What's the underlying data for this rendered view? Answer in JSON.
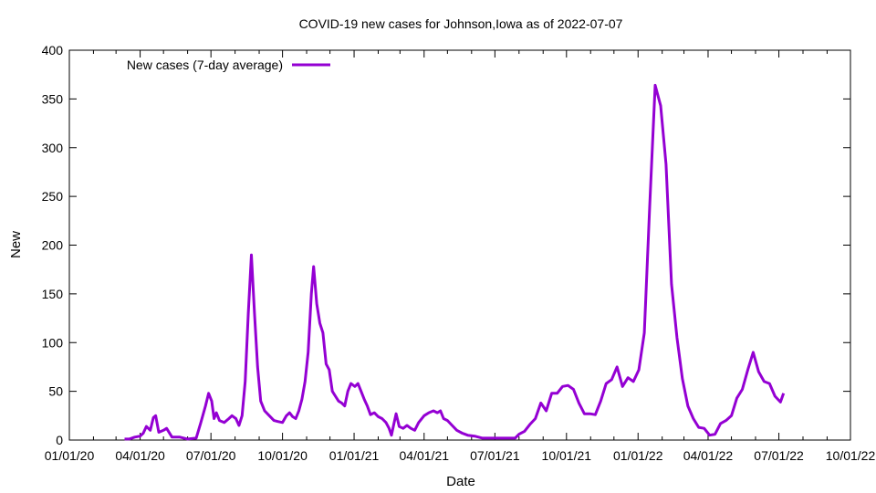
{
  "chart_data": {
    "type": "line",
    "title": "COVID-19 new cases for Johnson,Iowa as of 2022-07-07",
    "xlabel": "Date",
    "ylabel": "New",
    "xlim": [
      "2020-01-01",
      "2022-10-01"
    ],
    "ylim": [
      0,
      400
    ],
    "x_ticks": [
      "01/01/20",
      "04/01/20",
      "07/01/20",
      "10/01/20",
      "01/01/21",
      "04/01/21",
      "07/01/21",
      "10/01/21",
      "01/01/22",
      "04/01/22",
      "07/01/22",
      "10/01/22"
    ],
    "y_ticks": [
      0,
      50,
      100,
      150,
      200,
      250,
      300,
      350,
      400
    ],
    "grid": false,
    "legend_position": "top-left",
    "series": [
      {
        "name": "New cases (7-day average)",
        "color": "#9400d3",
        "points": [
          [
            "2020-03-12",
            1
          ],
          [
            "2020-03-18",
            1
          ],
          [
            "2020-03-25",
            3
          ],
          [
            "2020-04-01",
            4
          ],
          [
            "2020-04-05",
            7
          ],
          [
            "2020-04-09",
            14
          ],
          [
            "2020-04-14",
            10
          ],
          [
            "2020-04-18",
            23
          ],
          [
            "2020-04-21",
            25
          ],
          [
            "2020-04-25",
            8
          ],
          [
            "2020-05-01",
            10
          ],
          [
            "2020-05-05",
            12
          ],
          [
            "2020-05-12",
            3
          ],
          [
            "2020-05-22",
            3
          ],
          [
            "2020-06-01",
            1
          ],
          [
            "2020-06-12",
            2
          ],
          [
            "2020-06-18",
            18
          ],
          [
            "2020-06-24",
            35
          ],
          [
            "2020-06-28",
            48
          ],
          [
            "2020-07-02",
            40
          ],
          [
            "2020-07-05",
            22
          ],
          [
            "2020-07-08",
            28
          ],
          [
            "2020-07-12",
            20
          ],
          [
            "2020-07-18",
            18
          ],
          [
            "2020-07-24",
            22
          ],
          [
            "2020-07-28",
            25
          ],
          [
            "2020-08-02",
            22
          ],
          [
            "2020-08-06",
            15
          ],
          [
            "2020-08-10",
            25
          ],
          [
            "2020-08-14",
            60
          ],
          [
            "2020-08-18",
            130
          ],
          [
            "2020-08-22",
            190
          ],
          [
            "2020-08-26",
            130
          ],
          [
            "2020-08-30",
            75
          ],
          [
            "2020-09-03",
            40
          ],
          [
            "2020-09-08",
            30
          ],
          [
            "2020-09-14",
            25
          ],
          [
            "2020-09-20",
            20
          ],
          [
            "2020-09-25",
            19
          ],
          [
            "2020-10-01",
            18
          ],
          [
            "2020-10-06",
            25
          ],
          [
            "2020-10-10",
            28
          ],
          [
            "2020-10-14",
            24
          ],
          [
            "2020-10-18",
            22
          ],
          [
            "2020-10-22",
            30
          ],
          [
            "2020-10-26",
            42
          ],
          [
            "2020-10-30",
            60
          ],
          [
            "2020-11-03",
            90
          ],
          [
            "2020-11-07",
            150
          ],
          [
            "2020-11-10",
            178
          ],
          [
            "2020-11-14",
            140
          ],
          [
            "2020-11-18",
            120
          ],
          [
            "2020-11-22",
            110
          ],
          [
            "2020-11-26",
            78
          ],
          [
            "2020-11-30",
            72
          ],
          [
            "2020-12-04",
            50
          ],
          [
            "2020-12-08",
            45
          ],
          [
            "2020-12-12",
            40
          ],
          [
            "2020-12-16",
            38
          ],
          [
            "2020-12-20",
            35
          ],
          [
            "2020-12-24",
            50
          ],
          [
            "2020-12-28",
            58
          ],
          [
            "2021-01-02",
            55
          ],
          [
            "2021-01-06",
            58
          ],
          [
            "2021-01-10",
            50
          ],
          [
            "2021-01-14",
            42
          ],
          [
            "2021-01-18",
            35
          ],
          [
            "2021-01-22",
            26
          ],
          [
            "2021-01-27",
            28
          ],
          [
            "2021-02-01",
            24
          ],
          [
            "2021-02-06",
            22
          ],
          [
            "2021-02-11",
            18
          ],
          [
            "2021-02-15",
            12
          ],
          [
            "2021-02-18",
            5
          ],
          [
            "2021-02-21",
            16
          ],
          [
            "2021-02-24",
            27
          ],
          [
            "2021-02-28",
            14
          ],
          [
            "2021-03-05",
            12
          ],
          [
            "2021-03-10",
            15
          ],
          [
            "2021-03-15",
            12
          ],
          [
            "2021-03-20",
            10
          ],
          [
            "2021-03-25",
            18
          ],
          [
            "2021-04-01",
            25
          ],
          [
            "2021-04-07",
            28
          ],
          [
            "2021-04-13",
            30
          ],
          [
            "2021-04-18",
            28
          ],
          [
            "2021-04-22",
            30
          ],
          [
            "2021-04-26",
            22
          ],
          [
            "2021-05-01",
            20
          ],
          [
            "2021-05-07",
            15
          ],
          [
            "2021-05-13",
            10
          ],
          [
            "2021-05-20",
            7
          ],
          [
            "2021-05-27",
            5
          ],
          [
            "2021-06-05",
            4
          ],
          [
            "2021-06-15",
            2
          ],
          [
            "2021-06-25",
            2
          ],
          [
            "2021-07-01",
            2
          ],
          [
            "2021-07-10",
            2
          ],
          [
            "2021-07-20",
            2
          ],
          [
            "2021-07-27",
            2
          ],
          [
            "2021-08-01",
            6
          ],
          [
            "2021-08-08",
            9
          ],
          [
            "2021-08-15",
            16
          ],
          [
            "2021-08-22",
            22
          ],
          [
            "2021-08-29",
            38
          ],
          [
            "2021-09-05",
            30
          ],
          [
            "2021-09-12",
            48
          ],
          [
            "2021-09-19",
            48
          ],
          [
            "2021-09-26",
            55
          ],
          [
            "2021-10-03",
            56
          ],
          [
            "2021-10-10",
            52
          ],
          [
            "2021-10-17",
            38
          ],
          [
            "2021-10-24",
            27
          ],
          [
            "2021-10-31",
            27
          ],
          [
            "2021-11-07",
            26
          ],
          [
            "2021-11-14",
            40
          ],
          [
            "2021-11-21",
            58
          ],
          [
            "2021-11-28",
            62
          ],
          [
            "2021-12-05",
            75
          ],
          [
            "2021-12-12",
            55
          ],
          [
            "2021-12-19",
            64
          ],
          [
            "2021-12-26",
            60
          ],
          [
            "2022-01-02",
            72
          ],
          [
            "2022-01-09",
            110
          ],
          [
            "2022-01-16",
            240
          ],
          [
            "2022-01-23",
            364
          ],
          [
            "2022-01-30",
            343
          ],
          [
            "2022-02-06",
            283
          ],
          [
            "2022-02-13",
            160
          ],
          [
            "2022-02-20",
            105
          ],
          [
            "2022-02-27",
            63
          ],
          [
            "2022-03-06",
            35
          ],
          [
            "2022-03-13",
            22
          ],
          [
            "2022-03-20",
            13
          ],
          [
            "2022-03-27",
            12
          ],
          [
            "2022-04-03",
            5
          ],
          [
            "2022-04-10",
            6
          ],
          [
            "2022-04-17",
            17
          ],
          [
            "2022-04-24",
            20
          ],
          [
            "2022-05-01",
            25
          ],
          [
            "2022-05-08",
            43
          ],
          [
            "2022-05-15",
            52
          ],
          [
            "2022-05-22",
            72
          ],
          [
            "2022-05-29",
            90
          ],
          [
            "2022-06-05",
            70
          ],
          [
            "2022-06-12",
            60
          ],
          [
            "2022-06-19",
            58
          ],
          [
            "2022-06-26",
            45
          ],
          [
            "2022-07-03",
            39
          ],
          [
            "2022-07-07",
            48
          ]
        ]
      }
    ]
  }
}
